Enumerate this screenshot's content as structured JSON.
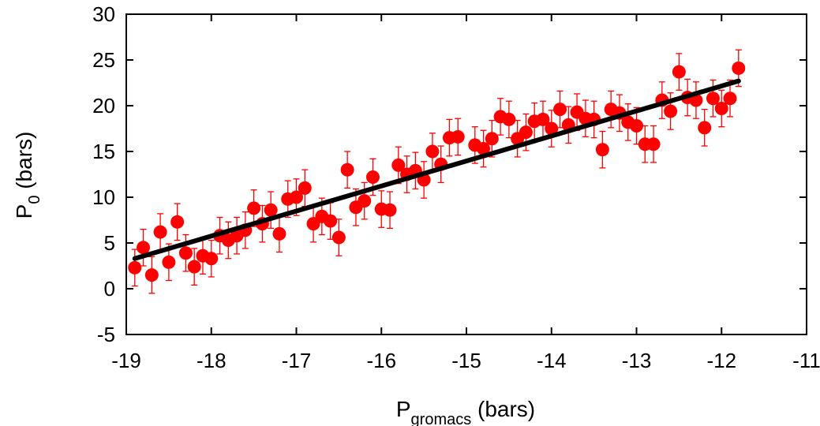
{
  "chart_data": {
    "type": "scatter",
    "title": "",
    "xlabel": {
      "main": "P",
      "subscript": "gromacs",
      "suffix": " (bars)"
    },
    "ylabel": {
      "main": "P",
      "subscript": "0",
      "suffix": " (bars)"
    },
    "xlim": [
      -19,
      -11
    ],
    "ylim": [
      -5,
      30
    ],
    "x_ticks": [
      "-19",
      "-18",
      "-17",
      "-16",
      "-15",
      "-14",
      "-13",
      "-12",
      "-11"
    ],
    "y_ticks": [
      "-5",
      "0",
      "5",
      "10",
      "15",
      "20",
      "25",
      "30"
    ],
    "grid": false,
    "legend": "none",
    "colors": {
      "points": "#ff0000",
      "errorbars": "#ff0000",
      "fit_line": "#000000"
    },
    "fit_line": {
      "x": [
        -18.9,
        -11.8
      ],
      "y": [
        3.3,
        22.7
      ]
    },
    "series": [
      {
        "error": 2.0,
        "x": [
          -18.9,
          -18.8,
          -18.7,
          -18.6,
          -18.5,
          -18.4,
          -18.3,
          -18.2,
          -18.1,
          -18.0,
          -17.9,
          -17.8,
          -17.7,
          -17.6,
          -17.5,
          -17.4,
          -17.3,
          -17.2,
          -17.1,
          -17.0,
          -16.9,
          -16.8,
          -16.7,
          -16.6,
          -16.5,
          -16.4,
          -16.3,
          -16.2,
          -16.1,
          -16.0,
          -15.9,
          -15.8,
          -15.7,
          -15.6,
          -15.5,
          -15.4,
          -15.3,
          -15.2,
          -15.1,
          -14.9,
          -14.8,
          -14.7,
          -14.6,
          -14.5,
          -14.4,
          -14.3,
          -14.2,
          -14.1,
          -14.0,
          -13.9,
          -13.8,
          -13.7,
          -13.6,
          -13.5,
          -13.4,
          -13.3,
          -13.2,
          -13.1,
          -13.0,
          -12.9,
          -12.8,
          -12.7,
          -12.6,
          -12.5,
          -12.4,
          -12.3,
          -12.2,
          -12.1,
          -12.0,
          -11.9,
          -11.8
        ],
        "y": [
          2.3,
          4.5,
          1.5,
          6.2,
          2.9,
          7.3,
          3.9,
          2.4,
          3.6,
          3.3,
          5.8,
          5.3,
          5.8,
          6.4,
          8.8,
          7.1,
          8.6,
          6.0,
          9.8,
          10.0,
          11.0,
          7.1,
          7.9,
          7.4,
          5.6,
          13.0,
          8.9,
          9.6,
          12.2,
          8.7,
          8.6,
          13.5,
          12.5,
          12.9,
          11.9,
          15.0,
          13.6,
          16.5,
          16.6,
          15.7,
          15.3,
          16.4,
          18.8,
          18.5,
          16.4,
          17.1,
          18.3,
          18.5,
          17.5,
          19.6,
          17.9,
          19.3,
          18.6,
          18.5,
          15.2,
          19.6,
          19.2,
          18.2,
          17.8,
          15.8,
          15.8,
          20.6,
          19.4,
          23.7,
          20.9,
          20.6,
          17.6,
          20.8,
          19.7,
          20.8,
          24.1
        ]
      }
    ]
  }
}
